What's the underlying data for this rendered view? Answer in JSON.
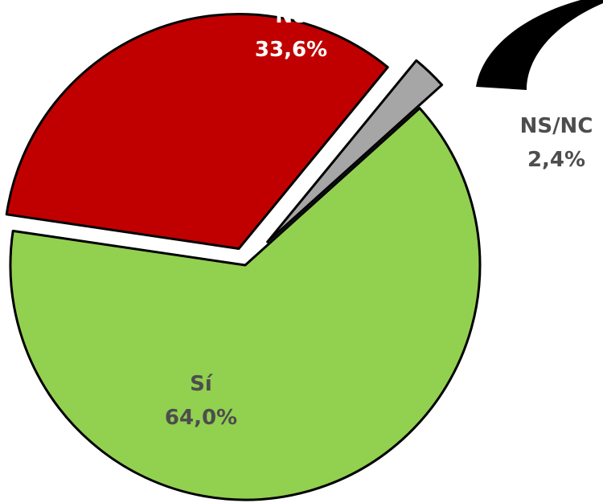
{
  "chart_data": {
    "type": "pie",
    "title": "",
    "categories": [
      "Sí",
      "No",
      "NS/NC"
    ],
    "values": [
      64.0,
      33.6,
      2.4
    ],
    "labels": [
      {
        "name": "Sí",
        "value": "64,0%",
        "color": "#92D050",
        "text_color": "#4D4D4D"
      },
      {
        "name": "No",
        "value": "33,6%",
        "color": "#C00000",
        "text_color": "#FFFFFF"
      },
      {
        "name": "NS/NC",
        "value": "2,4%",
        "color": "#A6A6A6",
        "text_color": "#4D4D4D"
      }
    ],
    "exploded_slices": [
      "No",
      "NS/NC"
    ],
    "legend": "none"
  },
  "decoration": {
    "mark": "black-curved-stroke",
    "color": "#000000"
  }
}
